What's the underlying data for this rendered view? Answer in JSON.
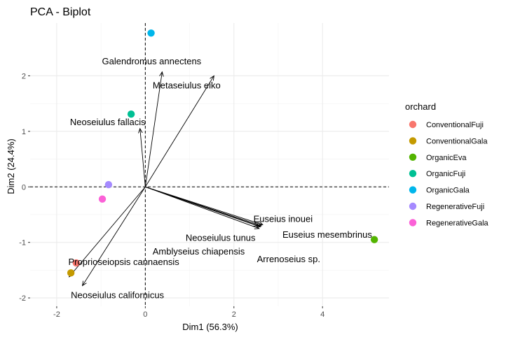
{
  "chart_data": {
    "type": "scatter",
    "title": "PCA - Biplot",
    "xlabel": "Dim1 (56.3%)",
    "ylabel": "Dim2 (24.4%)",
    "xlim": [
      -2.6,
      5.5
    ],
    "ylim": [
      -2.15,
      2.95
    ],
    "x_ticks": [
      -2,
      0,
      2,
      4
    ],
    "y_ticks": [
      -2,
      -1,
      0,
      1,
      2
    ],
    "x_tick_labels": [
      "-2",
      "0",
      "2",
      "4"
    ],
    "y_tick_labels": [
      "-2",
      "-1",
      "0",
      "1",
      "2"
    ],
    "grid": true,
    "reference_lines": {
      "x": 0,
      "y": 0,
      "style": "dashed"
    },
    "legend_title": "orchard",
    "legend_position": "right",
    "groups": [
      {
        "name": "ConventionalFuji",
        "color": "#F8766D",
        "x": -1.56,
        "y": -1.37
      },
      {
        "name": "ConventionalGala",
        "color": "#C49A00",
        "x": -1.68,
        "y": -1.55
      },
      {
        "name": "OrganicEva",
        "color": "#53B400",
        "x": 5.17,
        "y": -0.95
      },
      {
        "name": "OrganicFuji",
        "color": "#00C094",
        "x": -0.32,
        "y": 1.31
      },
      {
        "name": "OrganicGala",
        "color": "#00B6EB",
        "x": 0.13,
        "y": 2.77
      },
      {
        "name": "RegenerativeFuji",
        "color": "#A58AFF",
        "x": -0.83,
        "y": 0.04
      },
      {
        "name": "RegenerativeGala",
        "color": "#FB61D7",
        "x": -0.97,
        "y": -0.22
      }
    ],
    "variables": [
      {
        "name": "Galendromus annectens",
        "x": 0.38,
        "y": 2.07
      },
      {
        "name": "Metaseiulus eiko",
        "x": 1.55,
        "y": 2.0
      },
      {
        "name": "Neoseiulus fallacis",
        "x": -0.12,
        "y": 1.05
      },
      {
        "name": "Euseius inouei",
        "x": 2.65,
        "y": -0.68
      },
      {
        "name": "Neoseiulus tunus",
        "x": 2.6,
        "y": -0.72
      },
      {
        "name": "Euseius mesembrinus",
        "x": 2.62,
        "y": -0.7
      },
      {
        "name": "Arrenoseius sp.",
        "x": 2.57,
        "y": -0.75
      },
      {
        "name": "Amblyseius chiapensis",
        "x": 2.55,
        "y": -0.7
      },
      {
        "name": "Proprioseiopsis cannaensis",
        "x": -1.72,
        "y": -1.62
      },
      {
        "name": "Neoseiulus californicus",
        "x": -1.42,
        "y": -1.78
      }
    ]
  }
}
